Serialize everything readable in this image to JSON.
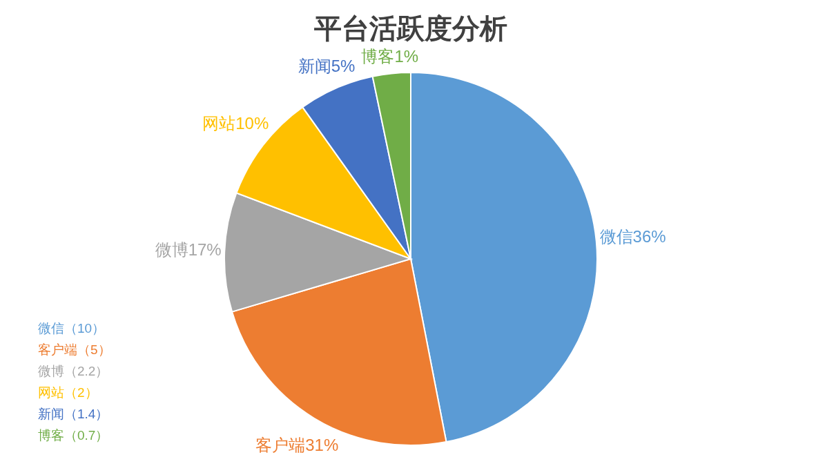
{
  "chart_data": {
    "type": "pie",
    "title": "平台活跃度分析",
    "categories": [
      "微信36%",
      "客户端31%",
      "微博17%",
      "网站10%",
      "新闻5%",
      "博客1%"
    ],
    "values": [
      10,
      5,
      2.2,
      2,
      1.4,
      0.7
    ],
    "colors": [
      "#5b9bd5",
      "#ed7d31",
      "#a5a5a5",
      "#ffc000",
      "#4472c4",
      "#70ad47"
    ],
    "annotations": [
      "微信（10）",
      "客户端（5）",
      "微博（2.2）",
      "网站（2）",
      "新闻（1.4）",
      "博客（0.7）"
    ]
  }
}
